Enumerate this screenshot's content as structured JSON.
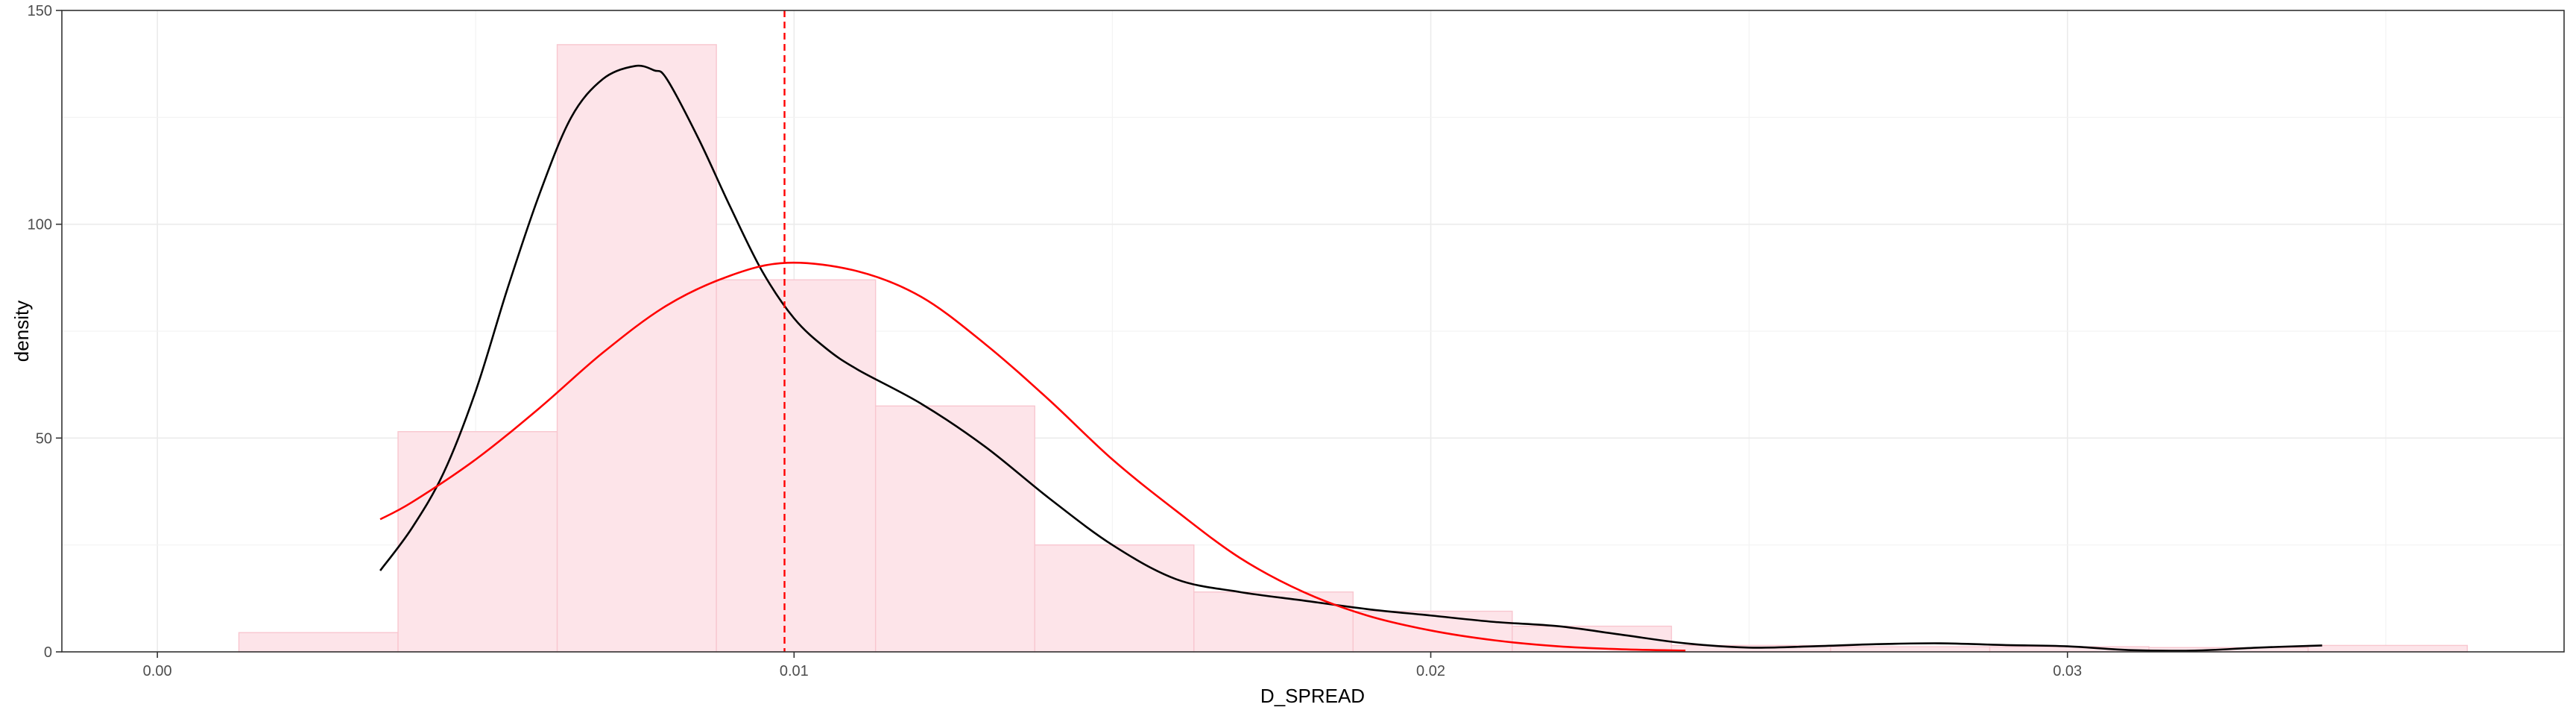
{
  "chart_data": {
    "type": "bar",
    "xlabel": "D_SPREAD",
    "ylabel": "density",
    "xlim": [
      -0.0015,
      0.0378
    ],
    "ylim": [
      0,
      150
    ],
    "x_ticks": [
      {
        "value": 0.0,
        "label": "0.00"
      },
      {
        "value": 0.01,
        "label": "0.01"
      },
      {
        "value": 0.02,
        "label": "0.02"
      },
      {
        "value": 0.03,
        "label": "0.03"
      }
    ],
    "y_ticks": [
      {
        "value": 0,
        "label": "0"
      },
      {
        "value": 50,
        "label": "50"
      },
      {
        "value": 100,
        "label": "100"
      },
      {
        "value": 150,
        "label": "150"
      }
    ],
    "grid": true,
    "histogram": {
      "bin_width": 0.0025,
      "fill_color": "#fde4e9",
      "border_color": "#f8c6cf",
      "bins": [
        {
          "x_start": 0.00128,
          "density": 4.5
        },
        {
          "x_start": 0.00378,
          "density": 51.5
        },
        {
          "x_start": 0.00628,
          "density": 142
        },
        {
          "x_start": 0.00878,
          "density": 87
        },
        {
          "x_start": 0.01128,
          "density": 57.5
        },
        {
          "x_start": 0.01378,
          "density": 25
        },
        {
          "x_start": 0.01628,
          "density": 14
        },
        {
          "x_start": 0.01878,
          "density": 9.5
        },
        {
          "x_start": 0.02128,
          "density": 6
        },
        {
          "x_start": 0.02378,
          "density": 1.5
        },
        {
          "x_start": 0.02628,
          "density": 1.2
        },
        {
          "x_start": 0.02878,
          "density": 1.2
        },
        {
          "x_start": 0.03128,
          "density": 1
        },
        {
          "x_start": 0.03378,
          "density": 1.5
        }
      ]
    },
    "series": [
      {
        "kind": "kernel-density",
        "color": "#000000",
        "x": [
          0.0035,
          0.004,
          0.0045,
          0.005,
          0.0055,
          0.006,
          0.0065,
          0.007,
          0.0075,
          0.0078,
          0.008,
          0.0085,
          0.009,
          0.0095,
          0.01,
          0.0105,
          0.011,
          0.012,
          0.013,
          0.014,
          0.015,
          0.016,
          0.017,
          0.018,
          0.019,
          0.02,
          0.021,
          0.022,
          0.023,
          0.024,
          0.025,
          0.026,
          0.027,
          0.028,
          0.029,
          0.03,
          0.031,
          0.032,
          0.033,
          0.034
        ],
        "y": [
          19,
          29,
          42,
          61,
          85,
          107,
          125,
          134,
          137,
          136,
          134,
          120,
          104,
          89,
          78,
          71,
          66,
          58,
          48,
          36,
          25,
          17,
          14,
          12,
          10,
          8.5,
          7,
          6,
          4,
          2,
          1,
          1.3,
          1.8,
          2,
          1.6,
          1.3,
          0.4,
          0.3,
          1,
          1.5
        ]
      },
      {
        "kind": "normal-fit",
        "color": "#ff0000",
        "x": [
          0.0035,
          0.004,
          0.005,
          0.006,
          0.007,
          0.008,
          0.009,
          0.0099,
          0.011,
          0.012,
          0.013,
          0.014,
          0.015,
          0.016,
          0.017,
          0.018,
          0.019,
          0.02,
          0.021,
          0.022,
          0.023,
          0.024
        ],
        "y": [
          31,
          35,
          45,
          57,
          70,
          81,
          88,
          91,
          89,
          83,
          72,
          59,
          45,
          33,
          22,
          14,
          8.5,
          5,
          2.7,
          1.3,
          0.6,
          0.3
        ]
      }
    ],
    "reference_line": {
      "x": 0.00985,
      "color": "#ff0000",
      "style": "dashed"
    }
  }
}
